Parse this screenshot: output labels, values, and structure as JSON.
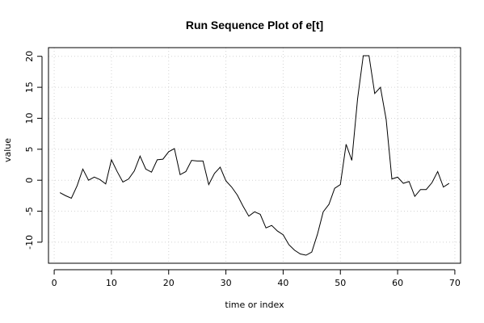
{
  "chart_data": {
    "type": "line",
    "title": "Run Sequence Plot of e[t]",
    "xlabel": "time or index",
    "ylabel": "value",
    "xlim": [
      -1,
      71
    ],
    "ylim": [
      -13.4,
      21.4
    ],
    "x_ticks": [
      0,
      10,
      20,
      30,
      40,
      50,
      60,
      70
    ],
    "y_ticks": [
      -10,
      -5,
      0,
      5,
      10,
      15,
      20
    ],
    "grid": true,
    "series": [
      {
        "x": [
          1,
          2,
          3,
          4,
          5,
          6,
          7,
          8,
          9,
          10,
          11,
          12,
          13,
          14,
          15,
          16,
          17,
          18,
          19,
          20,
          21,
          22,
          23,
          24,
          25,
          26,
          27,
          28,
          29,
          30,
          31,
          32,
          33,
          34,
          35,
          36,
          37,
          38,
          39,
          40,
          41,
          42,
          43,
          44,
          45,
          46,
          47,
          48,
          49,
          50,
          51,
          52,
          53,
          54,
          55,
          56,
          57,
          58,
          59,
          60,
          61,
          62,
          63,
          64,
          65,
          66,
          67,
          68,
          69
        ],
        "values": [
          -2.0,
          -2.5,
          -2.9,
          -0.9,
          1.8,
          0.0,
          0.5,
          0.1,
          -0.6,
          3.3,
          1.4,
          -0.3,
          0.2,
          1.5,
          3.9,
          1.8,
          1.3,
          3.3,
          3.4,
          4.6,
          5.1,
          0.9,
          1.4,
          3.2,
          3.1,
          3.1,
          -0.7,
          1.1,
          2.1,
          -0.1,
          -1.1,
          -2.4,
          -4.2,
          -5.8,
          -5.1,
          -5.5,
          -7.7,
          -7.3,
          -8.2,
          -8.8,
          -10.4,
          -11.3,
          -11.9,
          -12.1,
          -11.6,
          -8.7,
          -5.1,
          -3.9,
          -1.3,
          -0.7,
          5.8,
          3.2,
          13.1,
          20.1,
          20.1,
          14.0,
          15.0,
          9.8,
          0.2,
          0.5,
          -0.5,
          -0.2,
          -2.6,
          -1.5,
          -1.5,
          -0.4,
          1.4,
          -1.1,
          -0.5
        ]
      }
    ]
  }
}
